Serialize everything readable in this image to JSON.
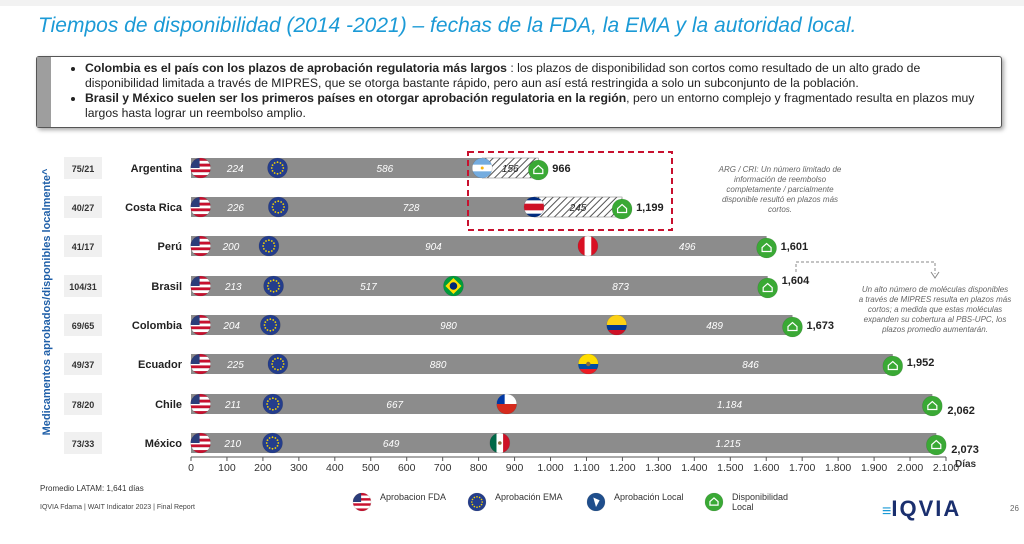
{
  "title": "Tiempos de disponibilidad (2014  -2021) – fechas de la FDA, la EMA y la autoridad local.",
  "callout": {
    "b1_bold": "Colombia es el país con los plazos de aprobación regulatoria más largos",
    "b1_rest": ": los plazos de disponibilidad son cortos como resultado de un alto grado de disponibilidad limitada a través de MIPRES, que se otorga bastante rápido, pero aun así está restringida a solo un subconjunto de la población.",
    "b2_bold": "Brasil y México suelen ser los primeros países en otorgar aprobación regulatoria en la región",
    "b2_rest": ", pero un entorno complejo y fragmentado resulta en plazos muy largos hasta lograr un reembolso amplio."
  },
  "chart_data": {
    "type": "stacked-bar-horizontal",
    "ylabel": "Medicamentos aprobados/disponibles localmente^",
    "xlabel": "Días",
    "xlim": [
      0,
      2100
    ],
    "xticks": [
      0,
      100,
      200,
      300,
      400,
      500,
      600,
      700,
      800,
      900,
      1000,
      1100,
      1200,
      1300,
      1400,
      1500,
      1600,
      1700,
      1800,
      1900,
      2000,
      2100
    ],
    "xtick_labels": [
      "0",
      "100",
      "200",
      "300",
      "400",
      "500",
      "600",
      "700",
      "800",
      "900",
      "1.000",
      "1.100",
      "1.200",
      "1.300",
      "1.400",
      "1.500",
      "1.600",
      "1.700",
      "1.800",
      "1.900",
      "2.000",
      "2.100"
    ],
    "rows": [
      {
        "country": "Argentina",
        "count": "75/21",
        "fda": 224,
        "ema_seg": 586,
        "ema_seg_label": "586",
        "local_seg": 156,
        "local_seg_label": "156",
        "total": 966,
        "total_label": "966",
        "hatched": true,
        "flag": "ar"
      },
      {
        "country": "Costa Rica",
        "count": "40/27",
        "fda": 226,
        "ema_seg": 728,
        "ema_seg_label": "728",
        "local_seg": 245,
        "local_seg_label": "245",
        "total": 1199,
        "total_label": "1,199",
        "hatched": true,
        "flag": "cr"
      },
      {
        "country": "Perú",
        "count": "41/17",
        "fda": 200,
        "ema_seg": 904,
        "ema_seg_label": "904",
        "local_seg": 496,
        "local_seg_label": "496",
        "total": 1601,
        "total_label": "1,601",
        "hatched": false,
        "flag": "pe"
      },
      {
        "country": "Brasil",
        "count": "104/31",
        "fda": 213,
        "ema_seg": 517,
        "ema_seg_label": "517",
        "local_seg": 873,
        "local_seg_label": "873",
        "total": 1604,
        "total_label": "1,604",
        "hatched": false,
        "flag": "br"
      },
      {
        "country": "Colombia",
        "count": "69/65",
        "fda": 204,
        "ema_seg": 980,
        "ema_seg_label": "980",
        "local_seg": 489,
        "local_seg_label": "489",
        "total": 1673,
        "total_label": "1,673",
        "hatched": false,
        "flag": "co"
      },
      {
        "country": "Ecuador",
        "count": "49/37",
        "fda": 225,
        "ema_seg": 880,
        "ema_seg_label": "880",
        "local_seg": 846,
        "local_seg_label": "846",
        "total": 1952,
        "total_label": "1,952",
        "hatched": false,
        "flag": "ec"
      },
      {
        "country": "Chile",
        "count": "78/20",
        "fda": 211,
        "ema_seg": 667,
        "ema_seg_label": "667",
        "local_seg": 1184,
        "local_seg_label": "1.184",
        "total": 2062,
        "total_label": "2,062",
        "hatched": false,
        "flag": "cl"
      },
      {
        "country": "México",
        "count": "73/33",
        "fda": 210,
        "ema_seg": 649,
        "ema_seg_label": "649",
        "local_seg": 1215,
        "local_seg_label": "1.215",
        "total": 2073,
        "total_label": "2,073",
        "hatched": false,
        "flag": "mx"
      }
    ],
    "annotations": {
      "arg_cri": "ARG / CRI: Un número limitado de información de reembolso completamente / parcialmente disponible resultó en plazos más cortos.",
      "mipres": "Un alto número de moléculas disponibles a través de MIPRES resulta en plazos más cortos; a medida que estas moléculas expanden su cobertura al PBS-UPC, los plazos promedio aumentarán."
    },
    "colors": {
      "bar": "#8c8c8c",
      "hatch": "#ffffff",
      "dashed_box": "#c8102e",
      "green": "#3aa935",
      "ema": "#1f3a93",
      "axis": "#555555"
    }
  },
  "footer": {
    "average": "Promedio LATAM: 1,641 días",
    "report": "IQVIA Fdama | WAIT Indicator 2023 | Final Report",
    "page": "26"
  },
  "legend": [
    {
      "icon": "us-flag",
      "label": "Aprobacion FDA"
    },
    {
      "icon": "eu-flag",
      "label": "Aprobación EMA"
    },
    {
      "icon": "local-approval",
      "label": "Aprobación Local"
    },
    {
      "icon": "local-availability",
      "label": "Disponibilidad Local"
    }
  ],
  "logo": "IQVIA"
}
